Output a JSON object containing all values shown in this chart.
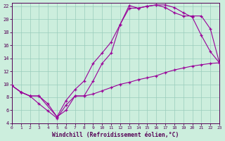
{
  "bg_color": "#cceedd",
  "line_color": "#990099",
  "grid_color": "#99ccbb",
  "text_color": "#550055",
  "xlabel": "Windchill (Refroidissement éolien,°C)",
  "xlim": [
    0,
    23
  ],
  "ylim": [
    4,
    22.5
  ],
  "xticks": [
    0,
    1,
    2,
    3,
    4,
    5,
    6,
    7,
    8,
    9,
    10,
    11,
    12,
    13,
    14,
    15,
    16,
    17,
    18,
    19,
    20,
    21,
    22,
    23
  ],
  "yticks": [
    4,
    6,
    8,
    10,
    12,
    14,
    16,
    18,
    20,
    22
  ],
  "curve1_x": [
    0,
    1,
    2,
    3,
    4,
    5,
    6,
    7,
    8,
    9,
    10,
    11,
    12,
    13,
    14,
    15,
    16,
    17,
    18,
    19,
    20,
    21,
    22,
    23
  ],
  "curve1_y": [
    9.8,
    8.8,
    8.2,
    7.0,
    5.9,
    4.8,
    6.8,
    8.2,
    8.2,
    10.5,
    13.2,
    14.8,
    19.2,
    22.1,
    21.7,
    22.0,
    22.2,
    22.2,
    21.8,
    21.0,
    20.3,
    17.5,
    15.0,
    13.3
  ],
  "curve2_x": [
    0,
    1,
    2,
    3,
    4,
    5,
    6,
    7,
    8,
    9,
    10,
    11,
    12,
    13,
    14,
    15,
    16,
    17,
    18,
    19,
    20,
    21,
    22,
    23
  ],
  "curve2_y": [
    9.8,
    8.8,
    8.2,
    8.2,
    7.0,
    5.0,
    7.5,
    9.2,
    10.5,
    13.2,
    14.8,
    16.5,
    19.2,
    21.7,
    21.7,
    22.0,
    22.2,
    21.8,
    21.0,
    20.5,
    20.5,
    20.5,
    18.5,
    13.3
  ],
  "curve3_x": [
    0,
    1,
    2,
    3,
    5,
    6,
    7,
    8,
    9,
    10,
    11,
    12,
    13,
    14,
    15,
    16,
    17,
    18,
    19,
    20,
    21,
    22,
    23
  ],
  "curve3_y": [
    9.8,
    8.8,
    8.2,
    8.2,
    5.0,
    6.0,
    8.2,
    8.2,
    8.5,
    9.0,
    9.5,
    10.0,
    10.3,
    10.7,
    11.0,
    11.3,
    11.8,
    12.2,
    12.5,
    12.8,
    13.0,
    13.2,
    13.3
  ]
}
